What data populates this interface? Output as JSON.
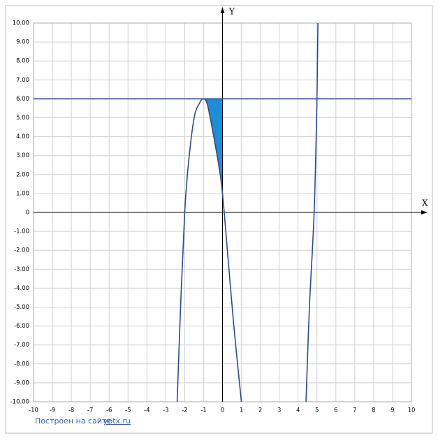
{
  "chart_data": {
    "type": "line",
    "x_label": "X",
    "y_label": "Y",
    "xlim": [
      -10,
      10
    ],
    "ylim": [
      -10,
      10
    ],
    "xticks": [
      -10,
      -9,
      -8,
      -7,
      -6,
      -5,
      -4,
      -3,
      -2,
      -1,
      0,
      1,
      2,
      3,
      4,
      5,
      6,
      7,
      8,
      9,
      10
    ],
    "yticks": [
      {
        "value": 10,
        "label": "10.00"
      },
      {
        "value": 9,
        "label": "9.00"
      },
      {
        "value": 8,
        "label": "8.00"
      },
      {
        "value": 7,
        "label": "7.00"
      },
      {
        "value": 6,
        "label": "6.00"
      },
      {
        "value": 5,
        "label": "5.00"
      },
      {
        "value": 4,
        "label": "4.00"
      },
      {
        "value": 3,
        "label": "3.00"
      },
      {
        "value": 2,
        "label": "2.00"
      },
      {
        "value": 1,
        "label": "1.00"
      },
      0,
      {
        "value": -1,
        "label": "-1.00"
      },
      {
        "value": -2,
        "label": "-2.00"
      },
      {
        "value": -3,
        "label": "-3.00"
      },
      {
        "value": -4,
        "label": "-4.00"
      },
      {
        "value": -5,
        "label": "-5.00"
      },
      {
        "value": -6,
        "label": "-6.00"
      },
      {
        "value": -7,
        "label": "-7.00"
      },
      {
        "value": -8,
        "label": "-8.00"
      },
      {
        "value": -9,
        "label": "-9.00"
      },
      {
        "value": -10,
        "label": "-10.00"
      }
    ],
    "grid": true,
    "series": [
      {
        "color": "#2b4a96",
        "x": [
          -2.4,
          -2.2,
          -2,
          -1.8,
          -1.5,
          -1.2,
          -1,
          -0.8,
          -0.5,
          -0.2,
          0,
          0.3,
          0.6,
          1.0
        ],
        "values": [
          -10,
          -4.5,
          0,
          2.6,
          5,
          5.8,
          6,
          5.7,
          4.2,
          2.5,
          1,
          -2.5,
          -6,
          -10
        ]
      },
      {
        "color": "#2b4a96",
        "x": [
          4.42,
          4.6,
          4.85,
          5.0,
          5.05
        ],
        "values": [
          -10,
          -5,
          0,
          6,
          10
        ]
      },
      {
        "color": "#1f4e9c",
        "x": [
          -10,
          10
        ],
        "values": [
          6,
          6
        ]
      }
    ],
    "shade": {
      "color": "#1a8fd8",
      "series": 0,
      "from": -1,
      "to": 0,
      "level": 6
    },
    "footer": {
      "text": "Построен на сайте",
      "link": "yotx.ru"
    }
  }
}
